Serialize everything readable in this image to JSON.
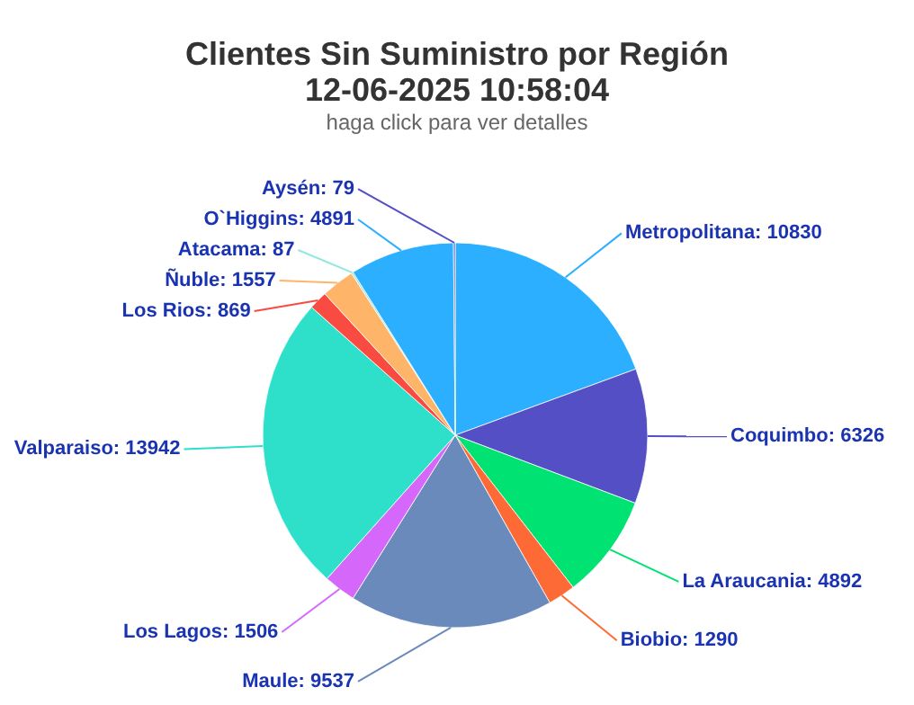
{
  "chart_data": {
    "type": "pie",
    "title": "Clientes Sin Suministro por Región",
    "subtitle": "12-06-2025 10:58:04",
    "annotations": [
      "haga click para ver detalles"
    ],
    "categories": [
      "Metropolitana: 10830",
      "Coquimbo: 6326",
      "La Araucania: 4892",
      "Biobio: 1290",
      "Maule: 9537",
      "Los Lagos: 1506",
      "Valparaiso: 13942",
      "Los Rios: 869",
      "Ñuble: 1557",
      "Atacama: 87",
      "O`Higgins: 4891",
      "Aysén: 79"
    ],
    "values": [
      10830,
      6326,
      4892,
      1290,
      9537,
      1506,
      13942,
      869,
      1557,
      87,
      4891,
      79
    ],
    "colors": [
      "#2caffe",
      "#544fc5",
      "#00e272",
      "#fe6a35",
      "#6b8abc",
      "#d568fb",
      "#2ee0ca",
      "#fa4b42",
      "#feb56a",
      "#91e8e1",
      "#2caffe",
      "#544fc5"
    ],
    "legend": false
  }
}
